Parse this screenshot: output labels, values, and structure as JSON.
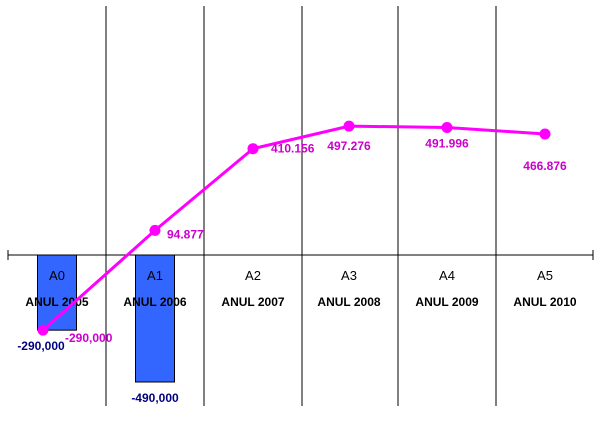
{
  "chart_data": {
    "type": "bar",
    "categories": [
      {
        "code": "A0",
        "name": "ANUL 2005"
      },
      {
        "code": "A1",
        "name": "ANUL 2006"
      },
      {
        "code": "A2",
        "name": "ANUL 2007"
      },
      {
        "code": "A3",
        "name": "ANUL 2008"
      },
      {
        "code": "A4",
        "name": "ANUL 2009"
      },
      {
        "code": "A5",
        "name": "ANUL 2010"
      }
    ],
    "series": [
      {
        "kind": "bar",
        "color": "#3366ff",
        "values": [
          -290000,
          -490000,
          null,
          null,
          null,
          null
        ],
        "labels": [
          "-290,000",
          "-490,000",
          null,
          null,
          null,
          null
        ],
        "label_color": "#000080"
      },
      {
        "kind": "line",
        "color": "#ff00ff",
        "values": [
          -290000,
          94877,
          410156,
          497276,
          491996,
          466876
        ],
        "labels": [
          "-290,000",
          "94.877",
          "410.156",
          "497.276",
          "491.996",
          "466.876"
        ],
        "label_color": "#cc00cc"
      }
    ],
    "ylim": [
      -490000,
      620000
    ],
    "grid": "vertical"
  }
}
